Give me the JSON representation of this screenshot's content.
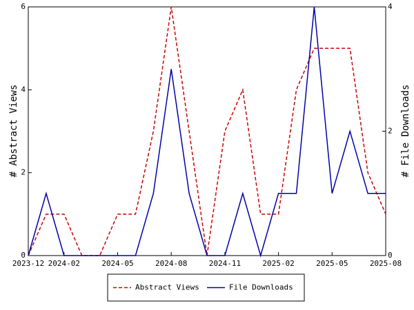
{
  "chart_data": {
    "type": "line",
    "categories": [
      "2023-12",
      null,
      "2024-02",
      null,
      null,
      "2024-05",
      null,
      null,
      "2024-08",
      null,
      null,
      "2024-11",
      null,
      null,
      "2025-02",
      null,
      null,
      "2025-05",
      null,
      null,
      "2025-08"
    ],
    "y_label": "# Abstract Views",
    "y2_label": "# File Downloads",
    "ylim": [
      0,
      6
    ],
    "yticks": [
      0,
      2,
      4,
      6
    ],
    "y2lim": [
      0,
      4
    ],
    "y2ticks": [
      0,
      2,
      4
    ],
    "legend": "bottom",
    "series": [
      {
        "name": "Abstract Views",
        "color": "#cc0000",
        "dash": true,
        "values": [
          0,
          1,
          1,
          0,
          0,
          1,
          1,
          3,
          6,
          3,
          0,
          3,
          4,
          1,
          1,
          4,
          5,
          5,
          5,
          2,
          1
        ]
      },
      {
        "name": "File Downloads",
        "color": "#0000aa",
        "axis": "y2",
        "values": [
          0,
          1,
          0,
          0,
          0,
          0,
          0,
          1,
          3,
          1,
          0,
          0,
          1,
          0,
          1,
          1,
          4,
          1,
          2,
          1,
          1
        ]
      }
    ]
  }
}
